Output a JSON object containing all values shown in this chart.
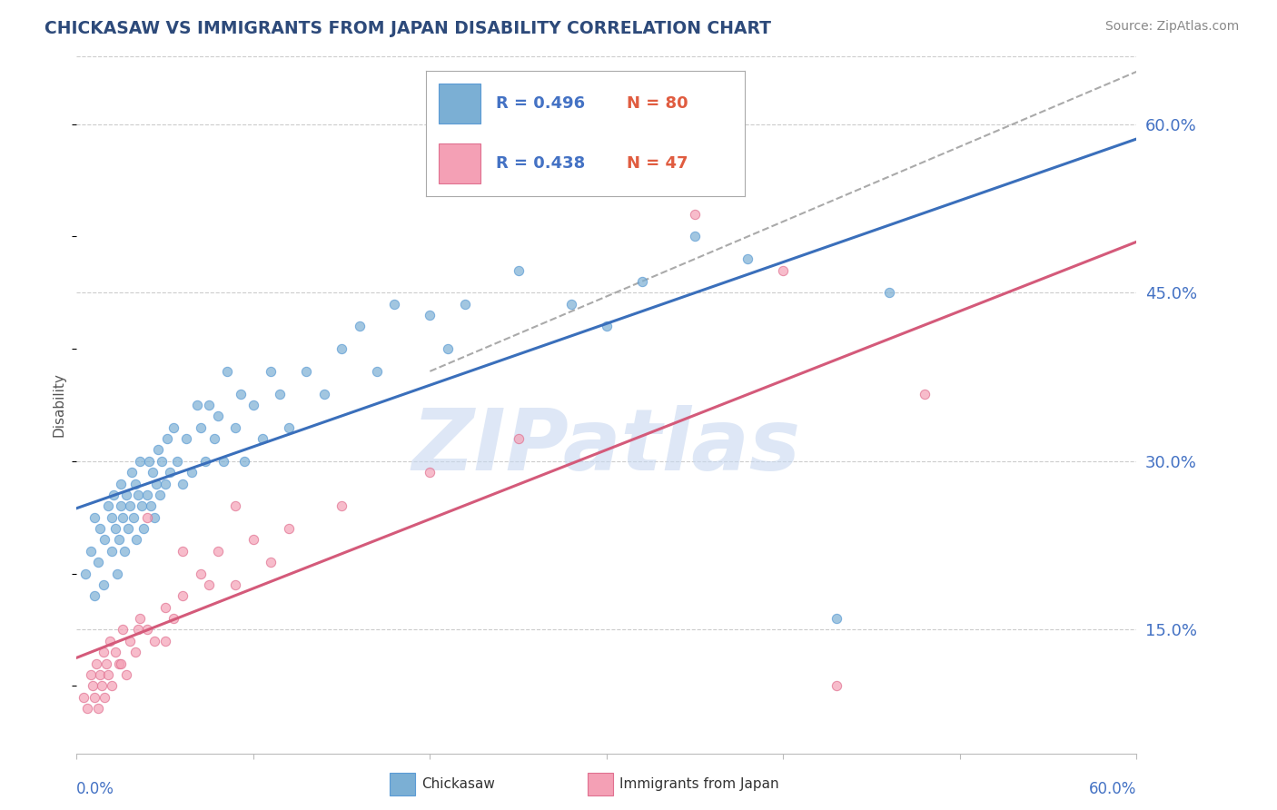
{
  "title": "CHICKASAW VS IMMIGRANTS FROM JAPAN DISABILITY CORRELATION CHART",
  "source": "Source: ZipAtlas.com",
  "xlim": [
    0.0,
    0.6
  ],
  "ylim": [
    0.04,
    0.66
  ],
  "ytick_vals": [
    0.15,
    0.3,
    0.45,
    0.6
  ],
  "ytick_labels": [
    "15.0%",
    "30.0%",
    "45.0%",
    "60.0%"
  ],
  "series1_name": "Chickasaw",
  "series1_color": "#7bafd4",
  "series1_edge": "#5b9bd5",
  "series1_R": 0.496,
  "series1_N": 80,
  "series2_name": "Immigrants from Japan",
  "series2_color": "#f4a0b5",
  "series2_edge": "#e07090",
  "series2_R": 0.438,
  "series2_N": 47,
  "trend1_color": "#3a6fbb",
  "trend2_color": "#d45a7a",
  "dash_color": "#aaaaaa",
  "watermark": "ZIPatlas",
  "watermark_color": "#c8d8f0",
  "background_color": "#ffffff",
  "grid_color": "#cccccc",
  "title_color": "#2d4a7a",
  "axis_label_color": "#4472c4",
  "legend_R_color": "#4472c4",
  "legend_N_color": "#e05c40",
  "ylabel_text": "Disability",
  "chickasaw_x": [
    0.005,
    0.008,
    0.01,
    0.01,
    0.012,
    0.013,
    0.015,
    0.016,
    0.018,
    0.02,
    0.02,
    0.021,
    0.022,
    0.023,
    0.024,
    0.025,
    0.025,
    0.026,
    0.027,
    0.028,
    0.029,
    0.03,
    0.031,
    0.032,
    0.033,
    0.034,
    0.035,
    0.036,
    0.037,
    0.038,
    0.04,
    0.041,
    0.042,
    0.043,
    0.044,
    0.045,
    0.046,
    0.047,
    0.048,
    0.05,
    0.051,
    0.053,
    0.055,
    0.057,
    0.06,
    0.062,
    0.065,
    0.068,
    0.07,
    0.073,
    0.075,
    0.078,
    0.08,
    0.083,
    0.085,
    0.09,
    0.093,
    0.095,
    0.1,
    0.105,
    0.11,
    0.115,
    0.12,
    0.13,
    0.14,
    0.15,
    0.16,
    0.17,
    0.18,
    0.2,
    0.21,
    0.22,
    0.25,
    0.28,
    0.3,
    0.32,
    0.35,
    0.38,
    0.43,
    0.46
  ],
  "chickasaw_y": [
    0.2,
    0.22,
    0.18,
    0.25,
    0.21,
    0.24,
    0.19,
    0.23,
    0.26,
    0.22,
    0.25,
    0.27,
    0.24,
    0.2,
    0.23,
    0.26,
    0.28,
    0.25,
    0.22,
    0.27,
    0.24,
    0.26,
    0.29,
    0.25,
    0.28,
    0.23,
    0.27,
    0.3,
    0.26,
    0.24,
    0.27,
    0.3,
    0.26,
    0.29,
    0.25,
    0.28,
    0.31,
    0.27,
    0.3,
    0.28,
    0.32,
    0.29,
    0.33,
    0.3,
    0.28,
    0.32,
    0.29,
    0.35,
    0.33,
    0.3,
    0.35,
    0.32,
    0.34,
    0.3,
    0.38,
    0.33,
    0.36,
    0.3,
    0.35,
    0.32,
    0.38,
    0.36,
    0.33,
    0.38,
    0.36,
    0.4,
    0.42,
    0.38,
    0.44,
    0.43,
    0.4,
    0.44,
    0.47,
    0.44,
    0.42,
    0.46,
    0.5,
    0.48,
    0.16,
    0.45
  ],
  "japan_x": [
    0.004,
    0.006,
    0.008,
    0.009,
    0.01,
    0.011,
    0.012,
    0.013,
    0.014,
    0.015,
    0.016,
    0.017,
    0.018,
    0.019,
    0.02,
    0.022,
    0.024,
    0.026,
    0.028,
    0.03,
    0.033,
    0.036,
    0.04,
    0.044,
    0.05,
    0.055,
    0.06,
    0.07,
    0.08,
    0.09,
    0.1,
    0.11,
    0.12,
    0.15,
    0.2,
    0.25,
    0.35,
    0.4,
    0.43,
    0.48,
    0.04,
    0.06,
    0.075,
    0.09,
    0.025,
    0.035,
    0.05
  ],
  "japan_y": [
    0.09,
    0.08,
    0.11,
    0.1,
    0.09,
    0.12,
    0.08,
    0.11,
    0.1,
    0.13,
    0.09,
    0.12,
    0.11,
    0.14,
    0.1,
    0.13,
    0.12,
    0.15,
    0.11,
    0.14,
    0.13,
    0.16,
    0.15,
    0.14,
    0.17,
    0.16,
    0.18,
    0.2,
    0.22,
    0.19,
    0.23,
    0.21,
    0.24,
    0.26,
    0.29,
    0.32,
    0.52,
    0.47,
    0.1,
    0.36,
    0.25,
    0.22,
    0.19,
    0.26,
    0.12,
    0.15,
    0.14
  ]
}
